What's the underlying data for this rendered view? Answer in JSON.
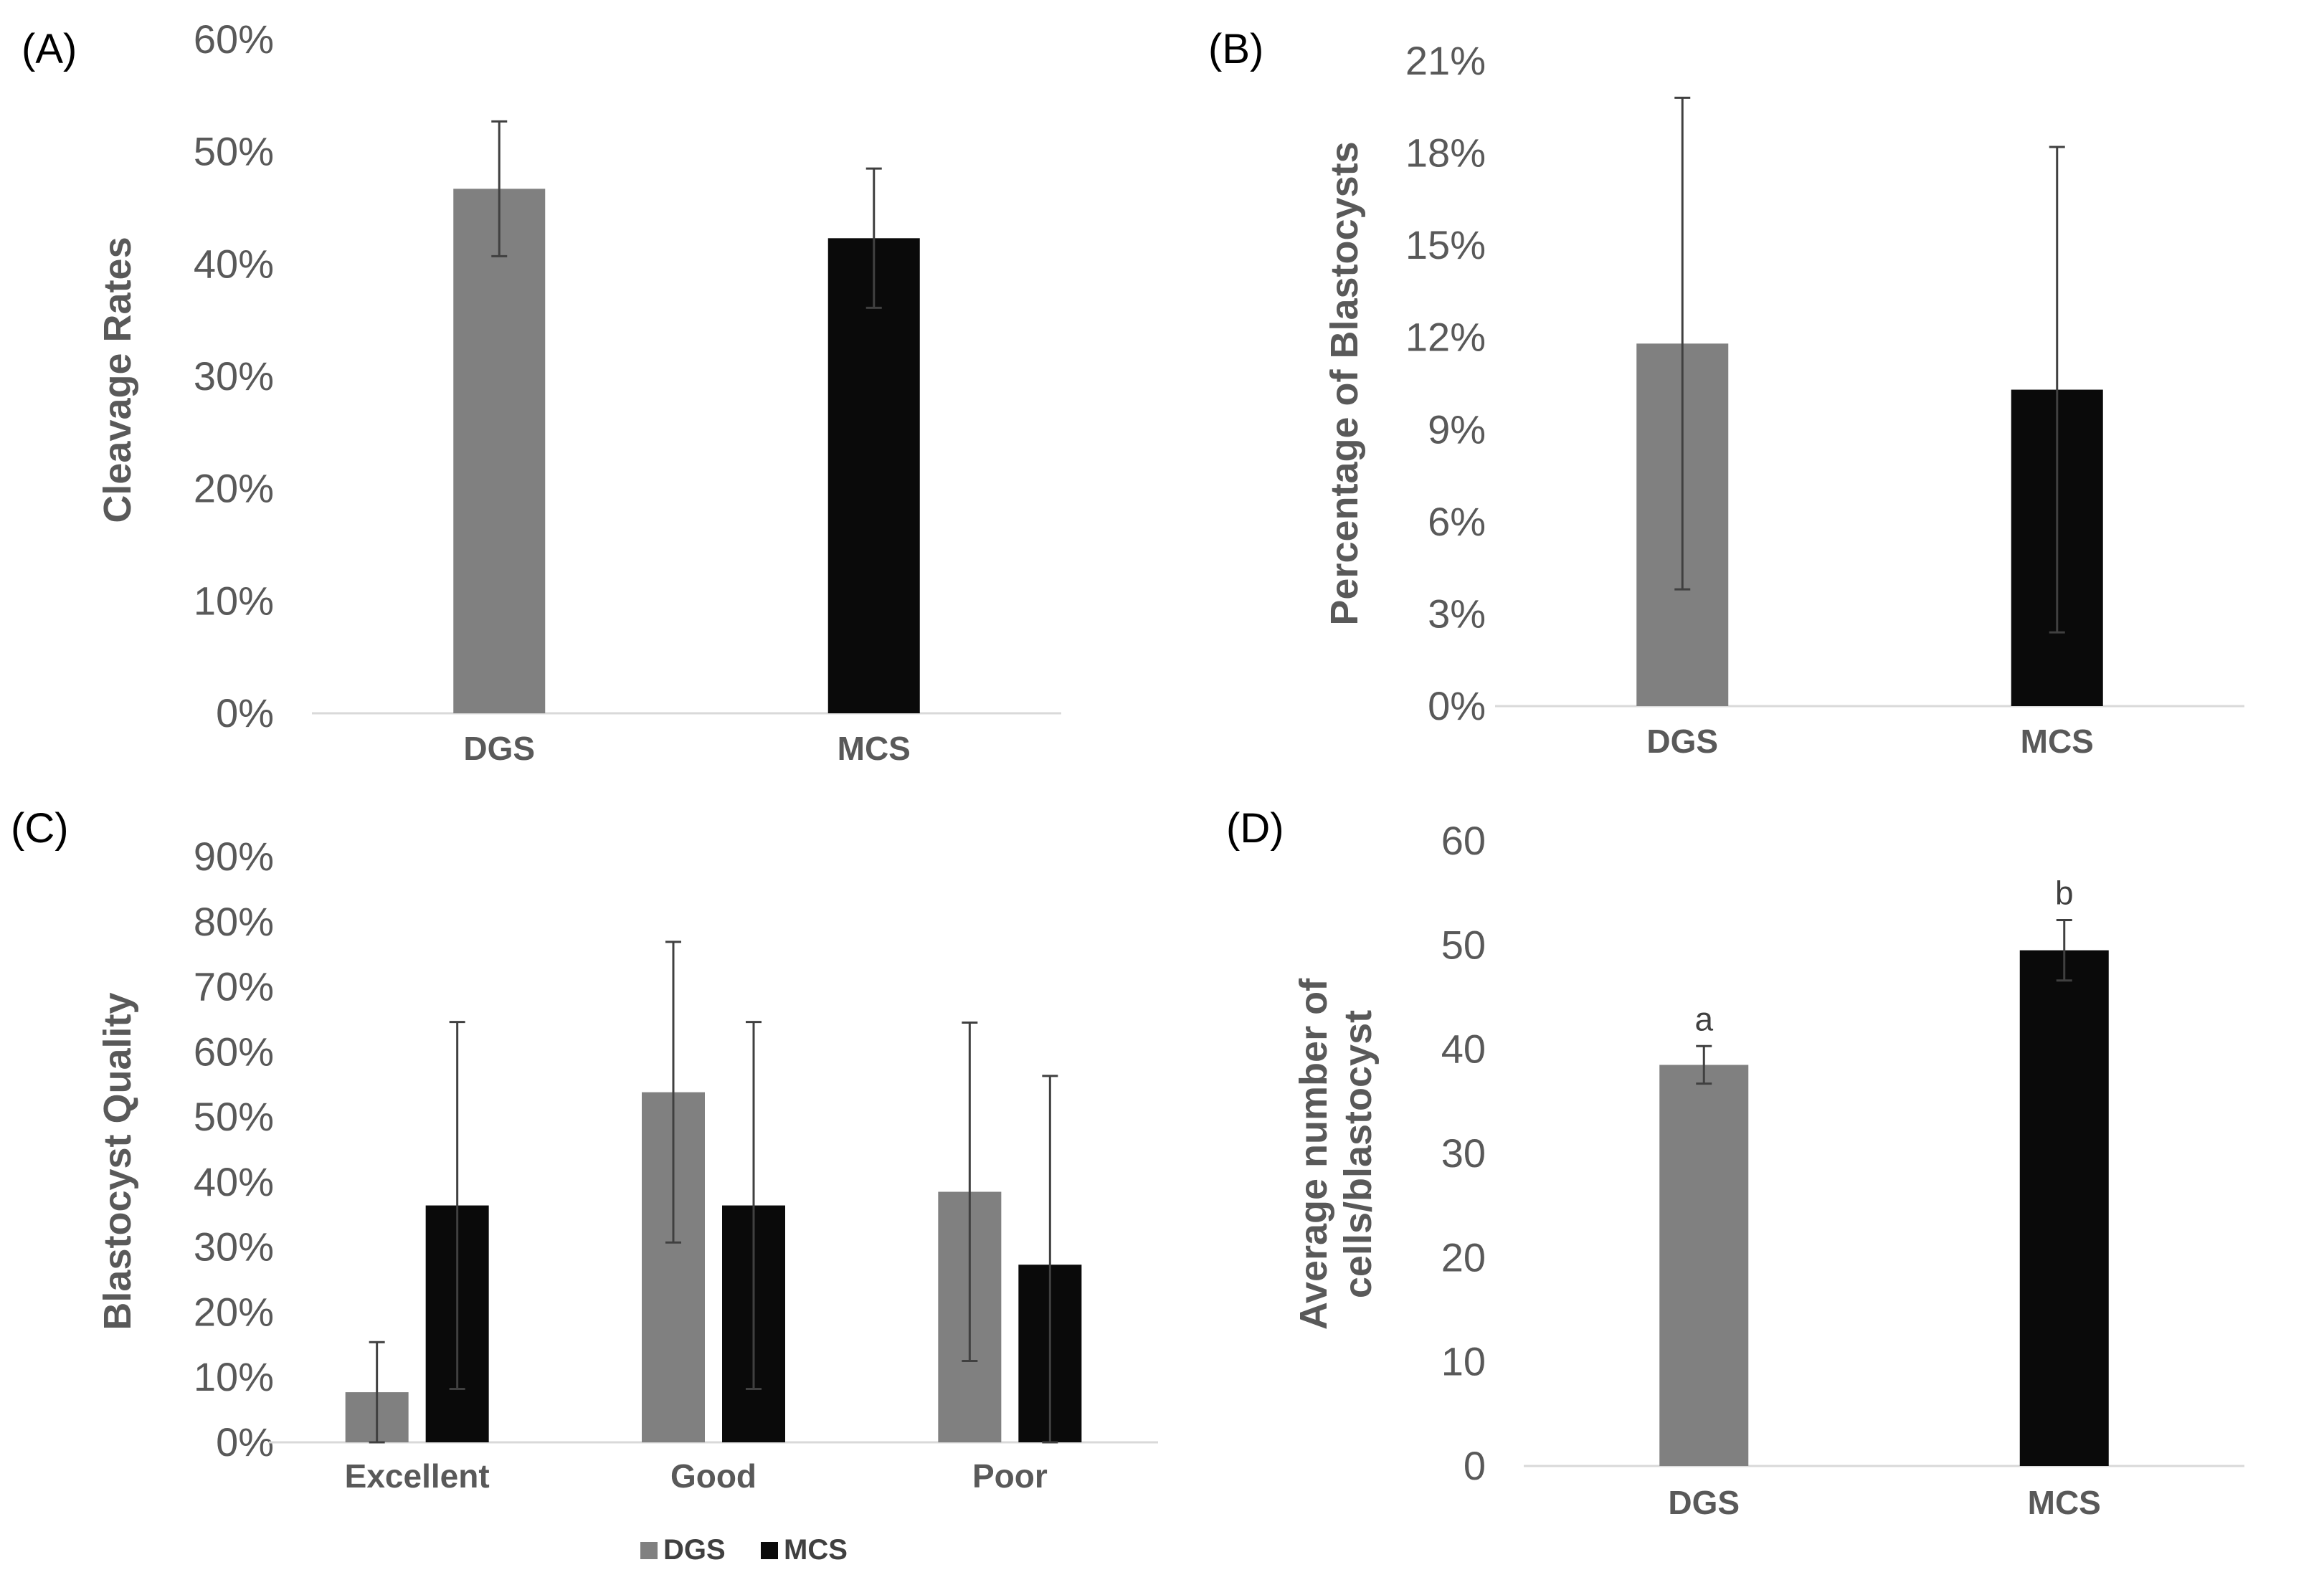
{
  "colors": {
    "DGS": "#808080",
    "MCS": "#0a0a0a",
    "axis": "#d9d9d9",
    "error": "#404040"
  },
  "chart_data": [
    {
      "panel": "(A)",
      "type": "bar",
      "title": "",
      "xlabel": "",
      "ylabel": "Cleavage Rates",
      "ylim": [
        0,
        60
      ],
      "yticks": [
        0,
        10,
        20,
        30,
        40,
        50,
        60
      ],
      "tick_suffix": "%",
      "categories": [
        "DGS",
        "MCS"
      ],
      "values": [
        46.7,
        42.3
      ],
      "errors": [
        6.0,
        6.2
      ],
      "bar_series": [
        "DGS",
        "MCS"
      ],
      "annotations": []
    },
    {
      "panel": "(B)",
      "type": "bar",
      "title": "",
      "xlabel": "",
      "ylabel": "Percentage of Blastocysts",
      "ylim": [
        0,
        21
      ],
      "yticks": [
        0,
        3,
        6,
        9,
        12,
        15,
        18,
        21
      ],
      "tick_suffix": "%",
      "categories": [
        "DGS",
        "MCS"
      ],
      "values": [
        11.8,
        10.3
      ],
      "errors": [
        8.0,
        7.9
      ],
      "bar_series": [
        "DGS",
        "MCS"
      ],
      "annotations": []
    },
    {
      "panel": "(C)",
      "type": "bar",
      "title": "",
      "xlabel": "",
      "ylabel": "Blastocyst Quality",
      "ylim": [
        0,
        90
      ],
      "yticks": [
        0,
        10,
        20,
        30,
        40,
        50,
        60,
        70,
        80,
        90
      ],
      "tick_suffix": "%",
      "categories": [
        "Excellent",
        "Good",
        "Poor"
      ],
      "series": [
        {
          "name": "DGS",
          "values": [
            7.7,
            53.8,
            38.5
          ],
          "errors": [
            7.7,
            23.1,
            26.0
          ]
        },
        {
          "name": "MCS",
          "values": [
            36.4,
            36.4,
            27.3
          ],
          "errors": [
            28.2,
            28.2,
            29.0
          ]
        }
      ],
      "legend": [
        "DGS",
        "MCS"
      ],
      "legend_position": "bottom"
    },
    {
      "panel": "(D)",
      "type": "bar",
      "title": "",
      "xlabel": "",
      "ylabel": "Average number of cells/blastocyst",
      "ylabel_lines": [
        "Average number of",
        "cells/blastocyst"
      ],
      "ylim": [
        0,
        60
      ],
      "yticks": [
        0,
        10,
        20,
        30,
        40,
        50,
        60
      ],
      "tick_suffix": "",
      "categories": [
        "DGS",
        "MCS"
      ],
      "values": [
        38.5,
        49.5
      ],
      "errors": [
        1.8,
        2.9
      ],
      "bar_series": [
        "DGS",
        "MCS"
      ],
      "annotations": [
        "a",
        "b"
      ]
    }
  ]
}
